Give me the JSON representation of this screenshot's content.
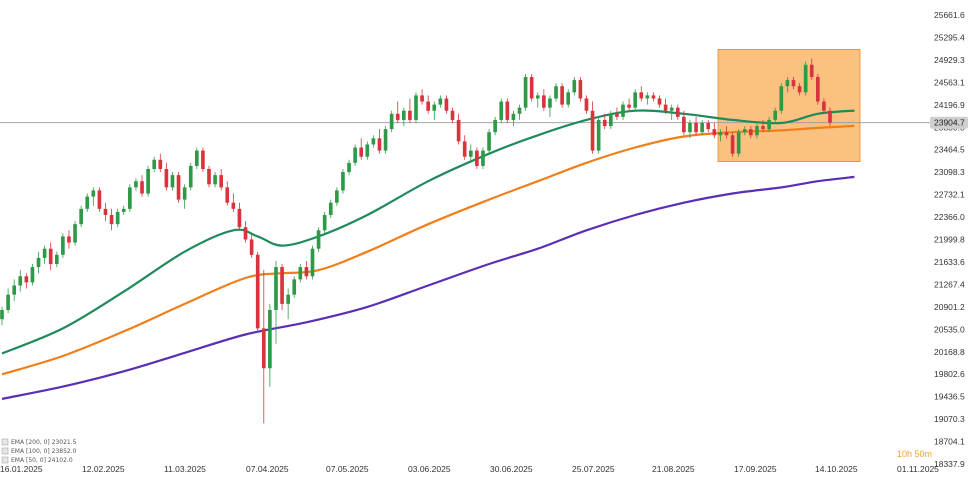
{
  "chart_data": {
    "type": "candlestick",
    "y_ticks": [
      "25661.6",
      "25295.4",
      "24929.3",
      "24563.1",
      "24196.9",
      "23830.8",
      "23464.5",
      "23098.3",
      "22732.1",
      "22366.0",
      "21999.8",
      "21633.6",
      "21267.4",
      "20901.2",
      "20535.0",
      "20168.8",
      "19802.6",
      "19436.5",
      "19070.3",
      "18704.1",
      "18337.9"
    ],
    "y_range": [
      18337.9,
      25661.6
    ],
    "x_ticks": [
      "16.01.2025",
      "12.02.2025",
      "11.03.2025",
      "07.04.2025",
      "07.05.2025",
      "03.06.2025",
      "30.06.2025",
      "25.07.2025",
      "21.08.2025",
      "17.09.2025",
      "14.10.2025",
      "01.11.2025"
    ],
    "current_price": "23904.7",
    "countdown": "10h 50m",
    "legend": [
      {
        "label": "EMA [200, 0]  23021.5",
        "color": "#5b2fb5"
      },
      {
        "label": "EMA [100, 0]  23852.0",
        "color": "#f07f1a"
      },
      {
        "label": "EMA [50, 0]  24102.0",
        "color": "#1f8a5a"
      }
    ],
    "colors": {
      "up": "#2e9a47",
      "down": "#d8343d",
      "ema50": "#1f8a5a",
      "ema100": "#f07f1a",
      "ema200": "#5b2fb5",
      "highlight": "#f7a03c"
    },
    "highlight_region": {
      "date_from": "08.09.2025",
      "date_to": "24.10.2025",
      "price_low": 23270,
      "price_high": 25100
    },
    "grid": false,
    "legend_position": "bottom-left",
    "ohlc": [
      [
        20700,
        20900,
        20600,
        20850
      ],
      [
        20850,
        21200,
        20800,
        21100
      ],
      [
        21100,
        21350,
        21000,
        21250
      ],
      [
        21250,
        21500,
        21150,
        21400
      ],
      [
        21400,
        21450,
        21200,
        21300
      ],
      [
        21300,
        21600,
        21250,
        21550
      ],
      [
        21550,
        21800,
        21450,
        21700
      ],
      [
        21700,
        21900,
        21600,
        21850
      ],
      [
        21850,
        21950,
        21500,
        21600
      ],
      [
        21600,
        21800,
        21550,
        21750
      ],
      [
        21750,
        22100,
        21700,
        22050
      ],
      [
        22050,
        22150,
        21850,
        21950
      ],
      [
        21950,
        22300,
        21900,
        22250
      ],
      [
        22250,
        22550,
        22200,
        22500
      ],
      [
        22500,
        22750,
        22450,
        22700
      ],
      [
        22700,
        22850,
        22550,
        22800
      ],
      [
        22800,
        22850,
        22450,
        22500
      ],
      [
        22500,
        22600,
        22300,
        22400
      ],
      [
        22400,
        22500,
        22150,
        22250
      ],
      [
        22250,
        22500,
        22200,
        22450
      ],
      [
        22450,
        22550,
        22400,
        22500
      ],
      [
        22500,
        22900,
        22450,
        22850
      ],
      [
        22850,
        23000,
        22800,
        22950
      ],
      [
        22950,
        23050,
        22700,
        22750
      ],
      [
        22750,
        23200,
        22700,
        23150
      ],
      [
        23150,
        23350,
        23100,
        23300
      ],
      [
        23300,
        23400,
        23100,
        23150
      ],
      [
        23150,
        23250,
        22800,
        22850
      ],
      [
        22850,
        23100,
        22800,
        23050
      ],
      [
        23050,
        23100,
        22600,
        22650
      ],
      [
        22650,
        22900,
        22500,
        22850
      ],
      [
        22850,
        23250,
        22800,
        23200
      ],
      [
        23200,
        23500,
        23150,
        23450
      ],
      [
        23450,
        23500,
        23100,
        23150
      ],
      [
        23150,
        23200,
        22850,
        22900
      ],
      [
        22900,
        23100,
        22850,
        23050
      ],
      [
        23050,
        23150,
        22800,
        22850
      ],
      [
        22850,
        22950,
        22550,
        22600
      ],
      [
        22600,
        22750,
        22450,
        22500
      ],
      [
        22500,
        22600,
        22150,
        22200
      ],
      [
        22200,
        22300,
        21950,
        22000
      ],
      [
        22000,
        22100,
        21700,
        21750
      ],
      [
        21750,
        21800,
        20500,
        20550
      ],
      [
        20550,
        21500,
        19000,
        19900
      ],
      [
        19900,
        20950,
        19600,
        20850
      ],
      [
        20850,
        21650,
        20300,
        21550
      ],
      [
        21550,
        21600,
        20850,
        20950
      ],
      [
        20950,
        21200,
        20700,
        21100
      ],
      [
        21100,
        21400,
        21050,
        21350
      ],
      [
        21350,
        21600,
        21300,
        21550
      ],
      [
        21550,
        21650,
        21350,
        21400
      ],
      [
        21400,
        21900,
        21350,
        21850
      ],
      [
        21850,
        22200,
        21800,
        22150
      ],
      [
        22150,
        22450,
        22100,
        22400
      ],
      [
        22400,
        22650,
        22350,
        22600
      ],
      [
        22600,
        22850,
        22550,
        22800
      ],
      [
        22800,
        23150,
        22750,
        23100
      ],
      [
        23100,
        23300,
        23050,
        23250
      ],
      [
        23250,
        23550,
        23200,
        23500
      ],
      [
        23500,
        23650,
        23300,
        23350
      ],
      [
        23350,
        23600,
        23300,
        23550
      ],
      [
        23550,
        23700,
        23500,
        23650
      ],
      [
        23650,
        23800,
        23400,
        23450
      ],
      [
        23450,
        23850,
        23400,
        23800
      ],
      [
        23800,
        24100,
        23750,
        24050
      ],
      [
        24050,
        24250,
        23900,
        23950
      ],
      [
        23950,
        24150,
        23850,
        24100
      ],
      [
        24100,
        24300,
        23900,
        23950
      ],
      [
        23950,
        24400,
        23900,
        24350
      ],
      [
        24350,
        24450,
        24200,
        24250
      ],
      [
        24250,
        24350,
        24050,
        24100
      ],
      [
        24100,
        24250,
        23950,
        24200
      ],
      [
        24200,
        24350,
        24150,
        24300
      ],
      [
        24300,
        24350,
        24050,
        24100
      ],
      [
        24100,
        24150,
        23900,
        23950
      ],
      [
        23950,
        24050,
        23550,
        23600
      ],
      [
        23600,
        23700,
        23300,
        23350
      ],
      [
        23350,
        23550,
        23250,
        23450
      ],
      [
        23450,
        23500,
        23150,
        23200
      ],
      [
        23200,
        23500,
        23150,
        23450
      ],
      [
        23450,
        23800,
        23400,
        23750
      ],
      [
        23750,
        24000,
        23700,
        23950
      ],
      [
        23950,
        24300,
        23900,
        24250
      ],
      [
        24250,
        24300,
        23900,
        23950
      ],
      [
        23950,
        24100,
        23850,
        24050
      ],
      [
        24050,
        24200,
        23950,
        24150
      ],
      [
        24150,
        24700,
        24100,
        24650
      ],
      [
        24650,
        24700,
        24250,
        24300
      ],
      [
        24300,
        24400,
        24150,
        24350
      ],
      [
        24350,
        24450,
        24100,
        24150
      ],
      [
        24150,
        24350,
        24000,
        24300
      ],
      [
        24300,
        24550,
        24250,
        24500
      ],
      [
        24500,
        24550,
        24150,
        24200
      ],
      [
        24200,
        24450,
        24150,
        24400
      ],
      [
        24400,
        24650,
        24350,
        24600
      ],
      [
        24600,
        24650,
        24250,
        24300
      ],
      [
        24300,
        24350,
        24050,
        24100
      ],
      [
        24100,
        24250,
        23400,
        23450
      ],
      [
        23450,
        24000,
        23400,
        23950
      ],
      [
        23950,
        24050,
        23800,
        23850
      ],
      [
        23850,
        24100,
        23800,
        24050
      ],
      [
        24050,
        24150,
        23950,
        24000
      ],
      [
        24000,
        24250,
        23950,
        24200
      ],
      [
        24200,
        24300,
        24100,
        24150
      ],
      [
        24150,
        24450,
        24100,
        24400
      ],
      [
        24400,
        24500,
        24250,
        24300
      ],
      [
        24300,
        24400,
        24200,
        24350
      ],
      [
        24350,
        24400,
        24250,
        24300
      ],
      [
        24300,
        24350,
        24150,
        24200
      ],
      [
        24200,
        24300,
        24050,
        24100
      ],
      [
        24100,
        24200,
        23950,
        24150
      ],
      [
        24150,
        24200,
        23950,
        24000
      ],
      [
        24000,
        24100,
        23700,
        23750
      ],
      [
        23750,
        23950,
        23650,
        23900
      ],
      [
        23900,
        24000,
        23700,
        23750
      ],
      [
        23750,
        23950,
        23700,
        23900
      ],
      [
        23900,
        23950,
        23750,
        23800
      ],
      [
        23800,
        23900,
        23650,
        23700
      ],
      [
        23700,
        23800,
        23600,
        23750
      ],
      [
        23750,
        23850,
        23650,
        23700
      ],
      [
        23700,
        23750,
        23350,
        23400
      ],
      [
        23400,
        23800,
        23350,
        23750
      ],
      [
        23750,
        23850,
        23700,
        23800
      ],
      [
        23800,
        23850,
        23650,
        23700
      ],
      [
        23700,
        23900,
        23650,
        23850
      ],
      [
        23850,
        23950,
        23750,
        23800
      ],
      [
        23800,
        24000,
        23750,
        23950
      ],
      [
        23950,
        24150,
        23900,
        24100
      ],
      [
        24100,
        24550,
        24050,
        24500
      ],
      [
        24500,
        24650,
        24400,
        24600
      ],
      [
        24600,
        24650,
        24450,
        24500
      ],
      [
        24500,
        24550,
        24350,
        24400
      ],
      [
        24400,
        24900,
        24350,
        24850
      ],
      [
        24850,
        24950,
        24600,
        24650
      ],
      [
        24650,
        24700,
        24200,
        24250
      ],
      [
        24250,
        24300,
        24050,
        24100
      ],
      [
        24100,
        24150,
        23850,
        23904.7
      ]
    ],
    "ema50": [
      [
        0,
        20140
      ],
      [
        10,
        20550
      ],
      [
        20,
        21150
      ],
      [
        30,
        21800
      ],
      [
        38,
        22150
      ],
      [
        42,
        22050
      ],
      [
        46,
        21900
      ],
      [
        52,
        22050
      ],
      [
        60,
        22400
      ],
      [
        70,
        22950
      ],
      [
        80,
        23400
      ],
      [
        88,
        23700
      ],
      [
        96,
        23950
      ],
      [
        104,
        24100
      ],
      [
        112,
        24050
      ],
      [
        120,
        23950
      ],
      [
        128,
        23900
      ],
      [
        134,
        24050
      ],
      [
        140,
        24102
      ]
    ],
    "ema100": [
      [
        0,
        19800
      ],
      [
        10,
        20100
      ],
      [
        20,
        20500
      ],
      [
        30,
        20950
      ],
      [
        38,
        21300
      ],
      [
        42,
        21420
      ],
      [
        46,
        21450
      ],
      [
        52,
        21500
      ],
      [
        60,
        21800
      ],
      [
        70,
        22250
      ],
      [
        80,
        22650
      ],
      [
        88,
        22950
      ],
      [
        96,
        23250
      ],
      [
        104,
        23500
      ],
      [
        112,
        23680
      ],
      [
        120,
        23750
      ],
      [
        128,
        23780
      ],
      [
        134,
        23820
      ],
      [
        140,
        23852
      ]
    ],
    "ema200": [
      [
        0,
        19400
      ],
      [
        10,
        19600
      ],
      [
        20,
        19850
      ],
      [
        30,
        20150
      ],
      [
        40,
        20450
      ],
      [
        50,
        20650
      ],
      [
        60,
        20900
      ],
      [
        70,
        21250
      ],
      [
        80,
        21600
      ],
      [
        88,
        21850
      ],
      [
        96,
        22150
      ],
      [
        104,
        22400
      ],
      [
        112,
        22600
      ],
      [
        120,
        22750
      ],
      [
        128,
        22850
      ],
      [
        134,
        22950
      ],
      [
        140,
        23021.5
      ]
    ]
  }
}
